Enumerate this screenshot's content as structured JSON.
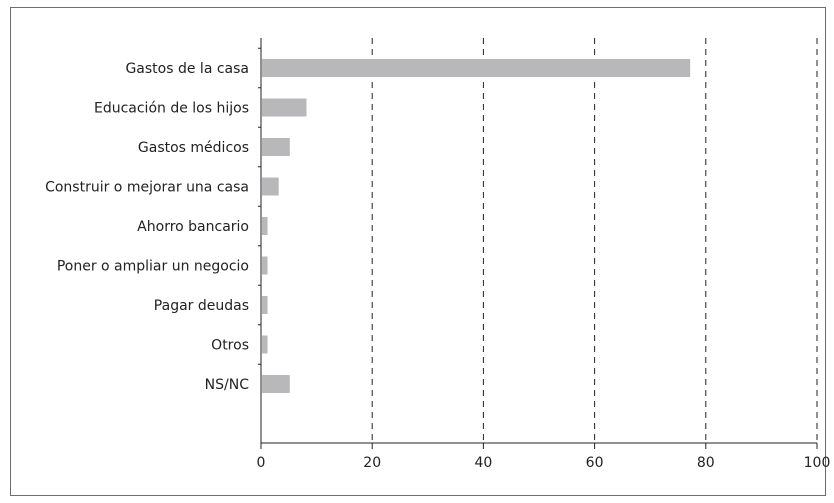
{
  "chart_data": {
    "type": "bar",
    "orientation": "horizontal",
    "categories": [
      "Gastos de la casa",
      "Educación de los hijos",
      "Gastos médicos",
      "Construir o mejorar una casa",
      "Ahorro bancario",
      "Poner o ampliar un negocio",
      "Pagar deudas",
      "Otros",
      "NS/NC"
    ],
    "values": [
      77,
      8,
      5,
      3,
      1,
      1,
      1,
      1,
      5
    ],
    "title": "",
    "xlabel": "",
    "ylabel": "",
    "xlim": [
      0,
      100
    ],
    "xticks": [
      "0",
      "20",
      "40",
      "60",
      "80",
      "100"
    ],
    "grid": "vertical dashed",
    "bar_color": "#b8b8ba",
    "grid_color": "#222222"
  }
}
